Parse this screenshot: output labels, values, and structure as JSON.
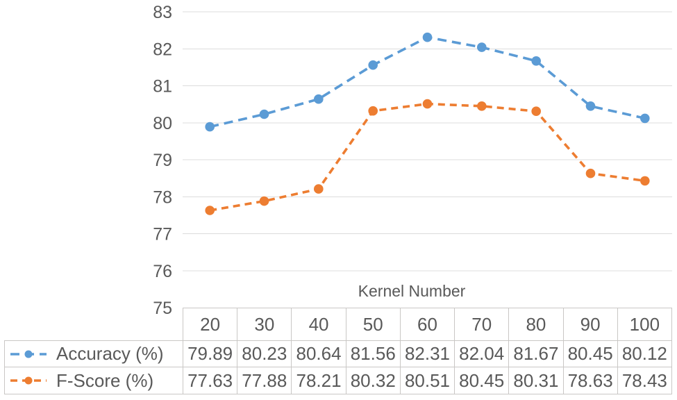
{
  "chart_data": {
    "type": "line",
    "title": "",
    "xlabel": "Kernel Number",
    "ylabel": "",
    "categories": [
      20,
      30,
      40,
      50,
      60,
      70,
      80,
      90,
      100
    ],
    "series": [
      {
        "name": "Accuracy (%)",
        "color": "#5B9BD5",
        "line_style": "dashed",
        "dash": [
          13,
          8
        ],
        "marker": "circle",
        "values": [
          79.89,
          80.23,
          80.64,
          81.56,
          82.31,
          82.04,
          81.67,
          80.45,
          80.12
        ]
      },
      {
        "name": "F-Score (%)",
        "color": "#ED7D31",
        "line_style": "dashed",
        "dash": [
          10,
          7
        ],
        "marker": "circle",
        "values": [
          77.63,
          77.88,
          78.21,
          80.32,
          80.51,
          80.45,
          80.31,
          78.63,
          78.43
        ]
      }
    ],
    "ylim": [
      75,
      83
    ],
    "yticks": [
      75,
      76,
      77,
      78,
      79,
      80,
      81,
      82,
      83
    ],
    "value_decimals": 2,
    "grid": "horizontal-only",
    "legend_position": "data-table-left",
    "data_table": true
  },
  "style": {
    "text_color": "#595959",
    "grid_color": "#DCDCDC",
    "table_border_color": "#C9C7C5",
    "background": "#FFFFFF"
  }
}
